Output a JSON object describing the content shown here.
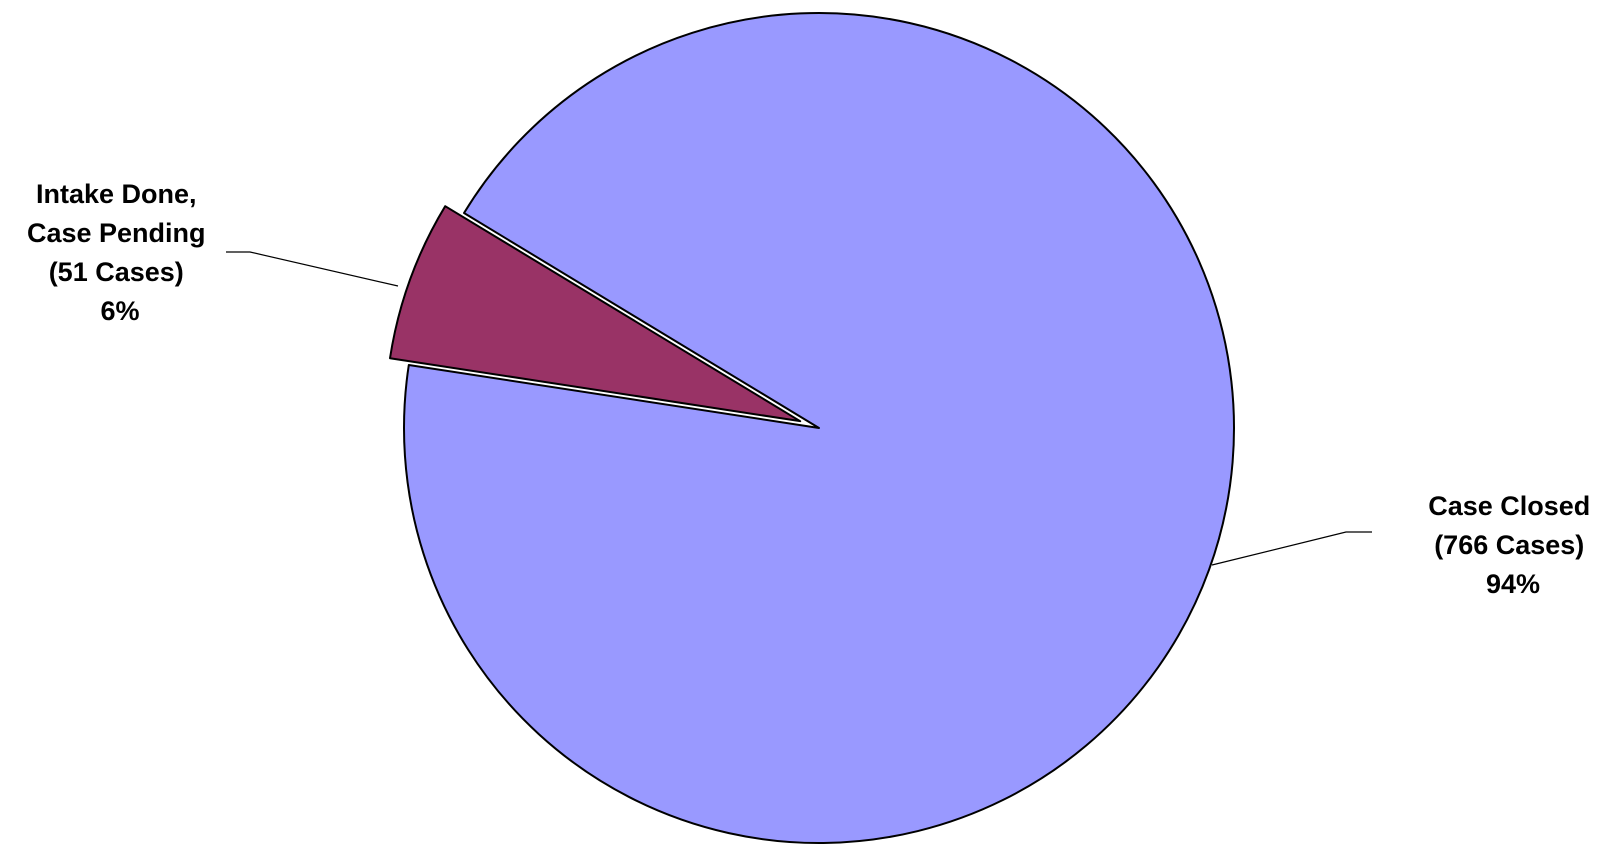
{
  "chart_data": {
    "type": "pie",
    "title": "",
    "series": [
      {
        "name": "",
        "slices": [
          {
            "label": "Case Closed",
            "count_label": "(766 Cases)",
            "percent_label": "94%",
            "value": 766,
            "color": "#9999ff",
            "exploded": false
          },
          {
            "label": "Intake Done, Case Pending",
            "label_lines": [
              "Intake Done,",
              "Case Pending"
            ],
            "count_label": "(51 Cases)",
            "percent_label": "6%",
            "value": 51,
            "color": "#993366",
            "exploded": true
          }
        ]
      }
    ],
    "legend": "none",
    "data_labels": "outside-with-leader-lines"
  }
}
